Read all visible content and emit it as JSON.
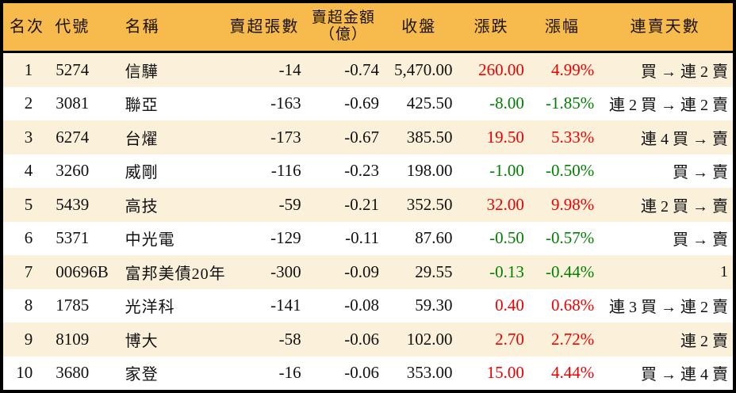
{
  "colors": {
    "header_bg": "#f7bb4d",
    "row_stripe_bg": "#fbf0d9",
    "row_white_bg": "#ffffff",
    "up_red": "#ee0000",
    "down_green": "#008000",
    "border_black": "#000000"
  },
  "chart_data": {
    "type": "table",
    "title": "",
    "header": {
      "rank": "名次",
      "code": "代號",
      "name": "名稱",
      "volume": "賣超張數",
      "amount_line1": "賣超金額",
      "amount_line2": "（億）",
      "close": "收盤",
      "change": "漲跌",
      "change_pct": "漲幅",
      "streak": "連賣天數"
    },
    "rows": [
      {
        "rank": "1",
        "code": "5274",
        "name": "信驊",
        "volume": "-14",
        "amount": "-0.74",
        "close": "5,470.00",
        "change": "260.00",
        "change_pct": "4.99%",
        "change_dir": "up",
        "streak": "買 → 連 2 賣"
      },
      {
        "rank": "2",
        "code": "3081",
        "name": "聯亞",
        "volume": "-163",
        "amount": "-0.69",
        "close": "425.50",
        "change": "-8.00",
        "change_pct": "-1.85%",
        "change_dir": "down",
        "streak": "連 2 買 → 連 2 賣"
      },
      {
        "rank": "3",
        "code": "6274",
        "name": "台燿",
        "volume": "-173",
        "amount": "-0.67",
        "close": "385.50",
        "change": "19.50",
        "change_pct": "5.33%",
        "change_dir": "up",
        "streak": "連 4 買 → 賣"
      },
      {
        "rank": "4",
        "code": "3260",
        "name": "威剛",
        "volume": "-116",
        "amount": "-0.23",
        "close": "198.00",
        "change": "-1.00",
        "change_pct": "-0.50%",
        "change_dir": "down",
        "streak": "買 → 賣"
      },
      {
        "rank": "5",
        "code": "5439",
        "name": "高技",
        "volume": "-59",
        "amount": "-0.21",
        "close": "352.50",
        "change": "32.00",
        "change_pct": "9.98%",
        "change_dir": "up",
        "streak": "連 2 買 → 賣"
      },
      {
        "rank": "6",
        "code": "5371",
        "name": "中光電",
        "volume": "-129",
        "amount": "-0.11",
        "close": "87.60",
        "change": "-0.50",
        "change_pct": "-0.57%",
        "change_dir": "down",
        "streak": "買 → 賣"
      },
      {
        "rank": "7",
        "code": "00696B",
        "name": "富邦美債20年",
        "volume": "-300",
        "amount": "-0.09",
        "close": "29.55",
        "change": "-0.13",
        "change_pct": "-0.44%",
        "change_dir": "down",
        "streak": "1"
      },
      {
        "rank": "8",
        "code": "1785",
        "name": "光洋科",
        "volume": "-141",
        "amount": "-0.08",
        "close": "59.30",
        "change": "0.40",
        "change_pct": "0.68%",
        "change_dir": "up",
        "streak": "連 3 買 → 連 2 賣"
      },
      {
        "rank": "9",
        "code": "8109",
        "name": "博大",
        "volume": "-58",
        "amount": "-0.06",
        "close": "102.00",
        "change": "2.70",
        "change_pct": "2.72%",
        "change_dir": "up",
        "streak": "連 2 賣"
      },
      {
        "rank": "10",
        "code": "3680",
        "name": "家登",
        "volume": "-16",
        "amount": "-0.06",
        "close": "353.00",
        "change": "15.00",
        "change_pct": "4.44%",
        "change_dir": "up",
        "streak": "買 → 連 4 賣"
      }
    ]
  }
}
